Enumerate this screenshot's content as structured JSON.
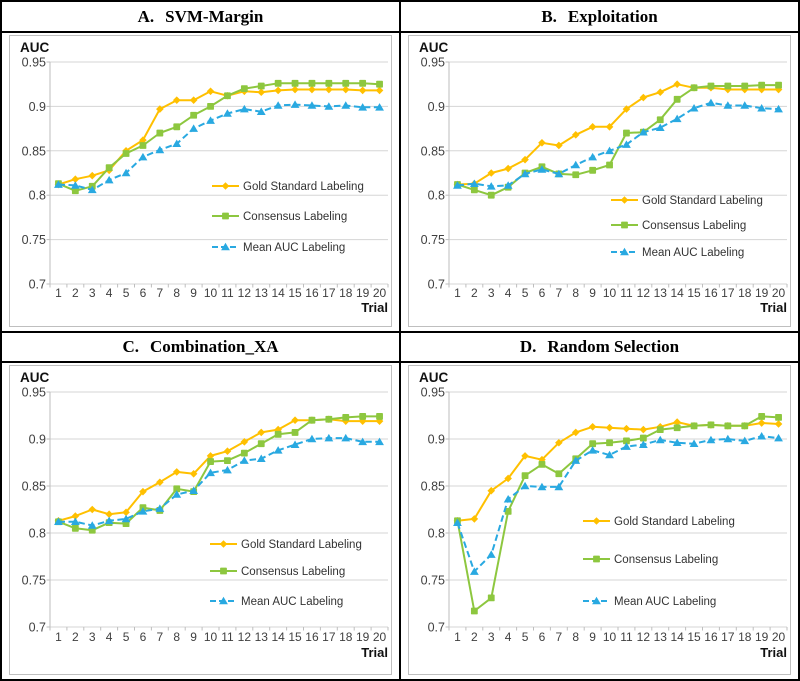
{
  "figure": {
    "y_axis_label": "AUC",
    "x_axis_label": "Trial"
  },
  "chart_data": {
    "type": "line",
    "categories": [
      1,
      2,
      3,
      4,
      5,
      6,
      7,
      8,
      9,
      10,
      11,
      12,
      13,
      14,
      15,
      16,
      17,
      18,
      19,
      20
    ],
    "xlabel": "Trial",
    "ylabel": "AUC",
    "ylim": [
      0.7,
      0.95
    ],
    "yticks": [
      0.95,
      0.9,
      0.85,
      0.8,
      0.75,
      0.7
    ],
    "ytick_labels": [
      "0.95",
      "0.9",
      "0.85",
      "0.8",
      "0.75",
      "0.7"
    ],
    "grid": true,
    "legend_position": "middle-right-inside",
    "series_styles": [
      {
        "name": "Gold Standard Labeling",
        "color": "#FFC000",
        "marker": "diamond",
        "line_style": "solid"
      },
      {
        "name": "Consensus Labeling",
        "color": "#8DC73F",
        "marker": "square",
        "line_style": "solid"
      },
      {
        "name": "Mean AUC Labeling",
        "color": "#29A9E1",
        "marker": "triangle",
        "line_style": "dashed"
      }
    ],
    "panels": [
      {
        "title": {
          "prefix": "A.",
          "text": "SVM-Margin"
        },
        "series": [
          {
            "name": "Gold Standard Labeling",
            "values": [
              0.812,
              0.818,
              0.822,
              0.828,
              0.85,
              0.862,
              0.897,
              0.907,
              0.907,
              0.917,
              0.912,
              0.917,
              0.916,
              0.918,
              0.919,
              0.919,
              0.919,
              0.919,
              0.918,
              0.918
            ]
          },
          {
            "name": "Consensus Labeling",
            "values": [
              0.813,
              0.805,
              0.81,
              0.831,
              0.847,
              0.856,
              0.87,
              0.877,
              0.89,
              0.9,
              0.912,
              0.92,
              0.923,
              0.926,
              0.926,
              0.926,
              0.926,
              0.926,
              0.926,
              0.925
            ]
          },
          {
            "name": "Mean AUC Labeling",
            "values": [
              0.812,
              0.811,
              0.806,
              0.817,
              0.825,
              0.843,
              0.851,
              0.858,
              0.875,
              0.884,
              0.892,
              0.897,
              0.894,
              0.901,
              0.902,
              0.901,
              0.9,
              0.901,
              0.899,
              0.899
            ]
          }
        ]
      },
      {
        "title": {
          "prefix": "B.",
          "text": "Exploitation"
        },
        "series": [
          {
            "name": "Gold Standard Labeling",
            "values": [
              0.812,
              0.813,
              0.825,
              0.83,
              0.84,
              0.859,
              0.856,
              0.868,
              0.877,
              0.877,
              0.897,
              0.91,
              0.916,
              0.925,
              0.921,
              0.921,
              0.919,
              0.919,
              0.919,
              0.919
            ]
          },
          {
            "name": "Consensus Labeling",
            "values": [
              0.812,
              0.806,
              0.8,
              0.809,
              0.825,
              0.832,
              0.824,
              0.823,
              0.828,
              0.834,
              0.87,
              0.871,
              0.885,
              0.908,
              0.921,
              0.923,
              0.923,
              0.923,
              0.924,
              0.924
            ]
          },
          {
            "name": "Mean AUC Labeling",
            "values": [
              0.811,
              0.813,
              0.81,
              0.811,
              0.824,
              0.829,
              0.824,
              0.834,
              0.843,
              0.85,
              0.857,
              0.871,
              0.876,
              0.886,
              0.898,
              0.904,
              0.901,
              0.901,
              0.898,
              0.897
            ]
          }
        ]
      },
      {
        "title": {
          "prefix": "C.",
          "text": "Combination_XA"
        },
        "series": [
          {
            "name": "Gold Standard Labeling",
            "values": [
              0.813,
              0.818,
              0.825,
              0.82,
              0.822,
              0.844,
              0.854,
              0.865,
              0.863,
              0.882,
              0.887,
              0.897,
              0.907,
              0.91,
              0.92,
              0.92,
              0.921,
              0.919,
              0.919,
              0.919
            ]
          },
          {
            "name": "Consensus Labeling",
            "values": [
              0.812,
              0.805,
              0.803,
              0.811,
              0.81,
              0.827,
              0.824,
              0.847,
              0.844,
              0.876,
              0.877,
              0.885,
              0.895,
              0.905,
              0.907,
              0.92,
              0.921,
              0.923,
              0.924,
              0.924
            ]
          },
          {
            "name": "Mean AUC Labeling",
            "values": [
              0.812,
              0.812,
              0.808,
              0.813,
              0.815,
              0.823,
              0.826,
              0.841,
              0.845,
              0.864,
              0.867,
              0.877,
              0.879,
              0.888,
              0.894,
              0.9,
              0.901,
              0.901,
              0.897,
              0.897
            ]
          }
        ]
      },
      {
        "title": {
          "prefix": "D.",
          "text": "Random Selection"
        },
        "series": [
          {
            "name": "Gold Standard Labeling",
            "values": [
              0.813,
              0.815,
              0.845,
              0.858,
              0.882,
              0.878,
              0.896,
              0.907,
              0.913,
              0.912,
              0.911,
              0.91,
              0.913,
              0.918,
              0.914,
              0.915,
              0.914,
              0.914,
              0.917,
              0.916
            ]
          },
          {
            "name": "Consensus Labeling",
            "values": [
              0.813,
              0.717,
              0.731,
              0.823,
              0.861,
              0.873,
              0.863,
              0.879,
              0.895,
              0.896,
              0.898,
              0.901,
              0.91,
              0.912,
              0.914,
              0.915,
              0.914,
              0.914,
              0.924,
              0.923
            ]
          },
          {
            "name": "Mean AUC Labeling",
            "values": [
              0.811,
              0.759,
              0.777,
              0.836,
              0.85,
              0.849,
              0.849,
              0.877,
              0.888,
              0.883,
              0.892,
              0.894,
              0.899,
              0.896,
              0.895,
              0.899,
              0.9,
              0.898,
              0.903,
              0.901
            ]
          }
        ]
      }
    ],
    "colors": {
      "gold": "#FFC000",
      "green": "#8DC73F",
      "blue": "#29A9E1",
      "gridline": "#D5D5D5",
      "axis": "#BEBEBE",
      "tick_text": "#3F3F3F",
      "border": "#000000",
      "chart_box_border": "#BFBFBF"
    }
  }
}
